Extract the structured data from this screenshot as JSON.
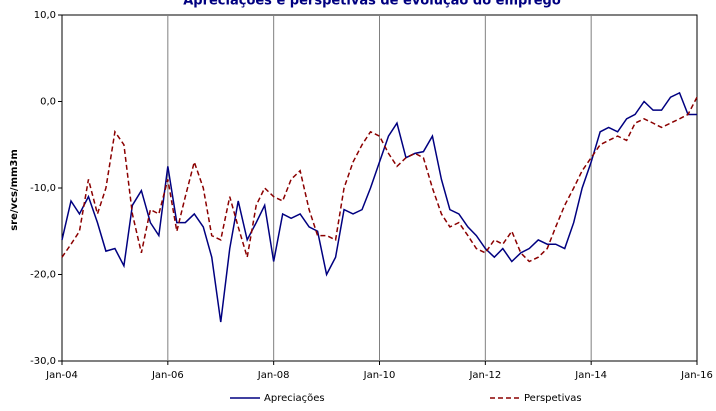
{
  "chart_data": {
    "type": "line",
    "title": "Apreciações e perspetivas de evolução do emprego",
    "y_label": "sre/vcs/mm3m",
    "x": [
      2004,
      2004.17,
      2004.33,
      2004.5,
      2004.67,
      2004.83,
      2005,
      2005.17,
      2005.33,
      2005.5,
      2005.67,
      2005.83,
      2006,
      2006.17,
      2006.33,
      2006.5,
      2006.67,
      2006.83,
      2007,
      2007.17,
      2007.33,
      2007.5,
      2007.67,
      2007.83,
      2008,
      2008.17,
      2008.33,
      2008.5,
      2008.67,
      2008.83,
      2009,
      2009.17,
      2009.33,
      2009.5,
      2009.67,
      2009.83,
      2010,
      2010.17,
      2010.33,
      2010.5,
      2010.67,
      2010.83,
      2011,
      2011.17,
      2011.33,
      2011.5,
      2011.67,
      2011.83,
      2012,
      2012.17,
      2012.33,
      2012.5,
      2012.67,
      2012.83,
      2013,
      2013.17,
      2013.33,
      2013.5,
      2013.67,
      2013.83,
      2014,
      2014.17,
      2014.33,
      2014.5,
      2014.67,
      2014.83,
      2015,
      2015.17,
      2015.33,
      2015.5,
      2015.67,
      2015.83,
      2016
    ],
    "series": [
      {
        "name": "Apreciações",
        "color": "#000080",
        "dash": "none",
        "values": [
          -16,
          -11.5,
          -13,
          -11,
          -14,
          -17.3,
          -17,
          -19,
          -12,
          -10.3,
          -14,
          -15.5,
          -7.5,
          -14,
          -14,
          -13,
          -14.5,
          -18,
          -25.5,
          -17,
          -11.5,
          -16,
          -14,
          -12,
          -18.5,
          -13,
          -13.5,
          -13,
          -14.5,
          -15,
          -20,
          -18,
          -12.5,
          -13,
          -12.5,
          -10,
          -7,
          -4,
          -2.5,
          -6.5,
          -6,
          -5.8,
          -4,
          -9,
          -12.5,
          -13,
          -14.5,
          -15.5,
          -17,
          -18,
          -17,
          -18.5,
          -17.5,
          -17,
          -16,
          -16.5,
          -16.5,
          -17,
          -14,
          -10,
          -7,
          -3.5,
          -3,
          -3.5,
          -2,
          -1.5,
          0,
          -1,
          -1,
          0.5,
          1,
          -1.5,
          -1.5
        ]
      },
      {
        "name": "Perspetivas",
        "color": "#8b0000",
        "dash": "5,3",
        "values": [
          -18,
          -16.5,
          -15,
          -9,
          -13,
          -10,
          -3.5,
          -5,
          -13,
          -17.5,
          -12.5,
          -13,
          -9,
          -15,
          -11,
          -7,
          -10,
          -15.5,
          -16,
          -11,
          -14.5,
          -18,
          -12,
          -10,
          -11,
          -11.5,
          -9,
          -8,
          -12.5,
          -15.5,
          -15.5,
          -16,
          -10,
          -7,
          -5,
          -3.5,
          -4,
          -6,
          -7.5,
          -6.5,
          -6,
          -6.5,
          -10,
          -13,
          -14.5,
          -14,
          -15.5,
          -17,
          -17.5,
          -16,
          -16.5,
          -15,
          -17.5,
          -18.5,
          -18,
          -17,
          -14.5,
          -12,
          -10,
          -8,
          -6.5,
          -5,
          -4.5,
          -4,
          -4.5,
          -2.5,
          -2,
          -2.5,
          -3,
          -2.5,
          -2,
          -1.5,
          0.5
        ]
      }
    ],
    "xlim": [
      2004,
      2016
    ],
    "xticks": [
      {
        "value": 2004,
        "label": "Jan-04"
      },
      {
        "value": 2006,
        "label": "Jan-06"
      },
      {
        "value": 2008,
        "label": "Jan-08"
      },
      {
        "value": 2010,
        "label": "Jan-10"
      },
      {
        "value": 2012,
        "label": "Jan-12"
      },
      {
        "value": 2014,
        "label": "Jan-14"
      },
      {
        "value": 2016,
        "label": "Jan-16"
      }
    ],
    "ylim": [
      -30,
      10
    ],
    "yticks": [
      {
        "value": -30,
        "label": "-30,0"
      },
      {
        "value": -20,
        "label": "-20,0"
      },
      {
        "value": -10,
        "label": "-10,0"
      },
      {
        "value": 0,
        "label": "0,0"
      },
      {
        "value": 10,
        "label": "10,0"
      }
    ],
    "grid": "x",
    "legend": "bottom"
  }
}
